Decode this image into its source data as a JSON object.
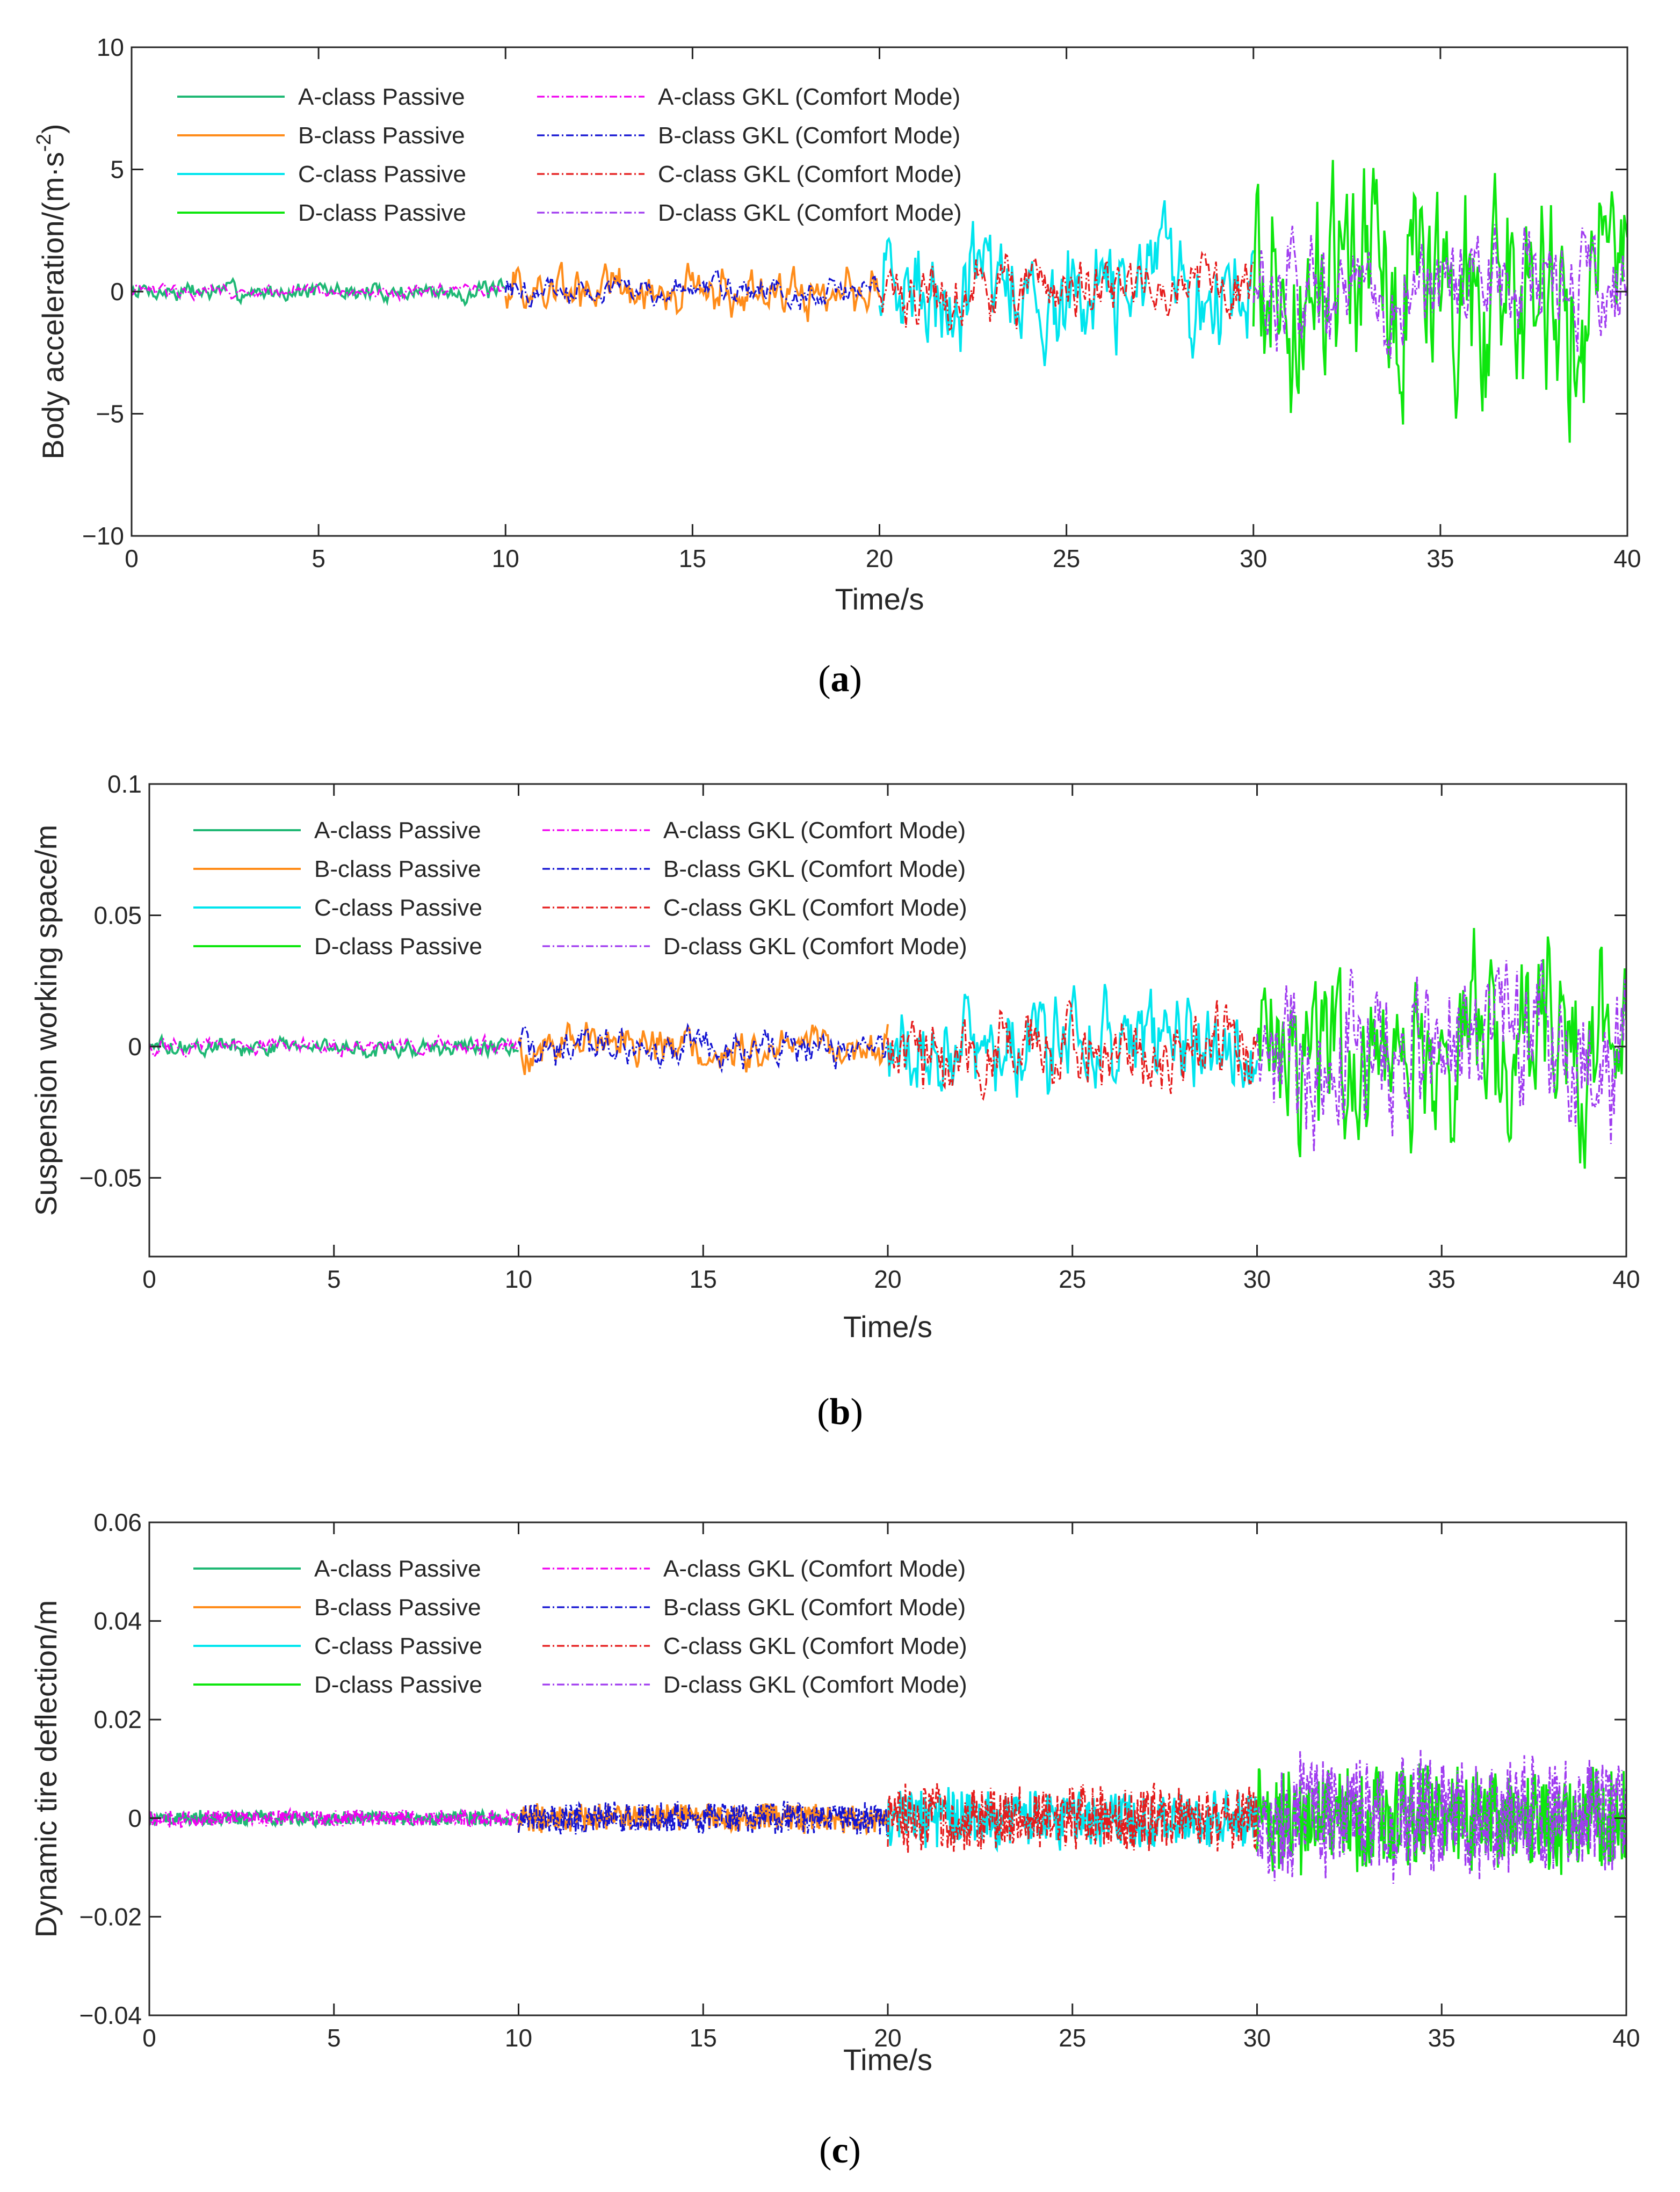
{
  "chart_data": [
    {
      "type": "line",
      "panel": "a",
      "caption_letter": "a",
      "xlabel": "Time/s",
      "ylabel": "Body acceleration/(m·s",
      "ylabel_sup": "-2",
      "ylabel_end": ")",
      "xlim": [
        0,
        40
      ],
      "ylim": [
        -10,
        10
      ],
      "xticks": [
        "0",
        "5",
        "10",
        "15",
        "20",
        "25",
        "30",
        "35",
        "40"
      ],
      "yticks": [
        "10",
        "5",
        "0",
        "−5",
        "−10"
      ],
      "ytick_values": [
        10,
        5,
        0,
        -5,
        -10
      ],
      "segments": [
        {
          "passive": "A-class Passive",
          "gkl": "A-class GKL (Comfort Mode)",
          "t": [
            0,
            10
          ],
          "passive_amp": 0.45,
          "gkl_amp": 0.3,
          "passive_color": "#1fb874",
          "gkl_color": "#f000f0"
        },
        {
          "passive": "B-class Passive",
          "gkl": "B-class GKL (Comfort Mode)",
          "t": [
            10,
            20
          ],
          "passive_amp": 1.1,
          "gkl_amp": 0.6,
          "passive_color": "#ff8c1a",
          "gkl_color": "#1414d2"
        },
        {
          "passive": "C-class Passive",
          "gkl": "C-class GKL (Comfort Mode)",
          "t": [
            20,
            30
          ],
          "passive_amp": 2.6,
          "gkl_amp": 1.4,
          "passive_color": "#00e5ee",
          "gkl_color": "#e51c1c"
        },
        {
          "passive": "D-class Passive",
          "gkl": "D-class GKL (Comfort Mode)",
          "t": [
            30,
            40
          ],
          "passive_amp": 5.2,
          "gkl_amp": 2.6,
          "passive_color": "#0ee60e",
          "gkl_color": "#a03cf0"
        }
      ]
    },
    {
      "type": "line",
      "panel": "b",
      "caption_letter": "b",
      "xlabel": "Time/s",
      "ylabel": "Suspension working space/m",
      "xlim": [
        0,
        40
      ],
      "ylim": [
        -0.08,
        0.1
      ],
      "xticks": [
        "0",
        "5",
        "10",
        "15",
        "20",
        "25",
        "30",
        "35",
        "40"
      ],
      "yticks": [
        "0.1",
        "0.05",
        "0",
        "−0.05"
      ],
      "ytick_values": [
        0.1,
        0.05,
        0,
        -0.05
      ],
      "segments": [
        {
          "passive": "A-class Passive",
          "gkl": "A-class GKL (Comfort Mode)",
          "t": [
            0,
            10
          ],
          "passive_amp": 0.004,
          "gkl_amp": 0.0035,
          "passive_color": "#1fb874",
          "gkl_color": "#f000f0"
        },
        {
          "passive": "B-class Passive",
          "gkl": "B-class GKL (Comfort Mode)",
          "t": [
            10,
            20
          ],
          "passive_amp": 0.009,
          "gkl_amp": 0.008,
          "passive_color": "#ff8c1a",
          "gkl_color": "#1414d2"
        },
        {
          "passive": "C-class Passive",
          "gkl": "C-class GKL (Comfort Mode)",
          "t": [
            20,
            30
          ],
          "passive_amp": 0.02,
          "gkl_amp": 0.017,
          "passive_color": "#00e5ee",
          "gkl_color": "#e51c1c"
        },
        {
          "passive": "D-class Passive",
          "gkl": "D-class GKL (Comfort Mode)",
          "t": [
            30,
            40
          ],
          "passive_amp": 0.04,
          "gkl_amp": 0.035,
          "passive_color": "#0ee60e",
          "gkl_color": "#a03cf0"
        }
      ]
    },
    {
      "type": "line",
      "panel": "c",
      "caption_letter": "c",
      "xlabel": "Time/s",
      "ylabel": "Dynamic tire deflection/m",
      "xlim": [
        0,
        40
      ],
      "ylim": [
        -0.04,
        0.06
      ],
      "xticks": [
        "0",
        "5",
        "10",
        "15",
        "20",
        "25",
        "30",
        "35",
        "40"
      ],
      "yticks": [
        "0.06",
        "0.04",
        "0.02",
        "0",
        "−0.02",
        "−0.04"
      ],
      "ytick_values": [
        0.06,
        0.04,
        0.02,
        0,
        -0.02,
        -0.04
      ],
      "segments": [
        {
          "passive": "A-class Passive",
          "gkl": "A-class GKL (Comfort Mode)",
          "t": [
            0,
            10
          ],
          "passive_amp": 0.0015,
          "gkl_amp": 0.0018,
          "passive_color": "#1fb874",
          "gkl_color": "#f000f0"
        },
        {
          "passive": "B-class Passive",
          "gkl": "B-class GKL (Comfort Mode)",
          "t": [
            10,
            20
          ],
          "passive_amp": 0.003,
          "gkl_amp": 0.0035,
          "passive_color": "#ff8c1a",
          "gkl_color": "#1414d2"
        },
        {
          "passive": "C-class Passive",
          "gkl": "C-class GKL (Comfort Mode)",
          "t": [
            20,
            30
          ],
          "passive_amp": 0.006,
          "gkl_amp": 0.007,
          "passive_color": "#00e5ee",
          "gkl_color": "#e51c1c"
        },
        {
          "passive": "D-class Passive",
          "gkl": "D-class GKL (Comfort Mode)",
          "t": [
            30,
            40
          ],
          "passive_amp": 0.011,
          "gkl_amp": 0.013,
          "passive_color": "#0ee60e",
          "gkl_color": "#a03cf0"
        }
      ]
    }
  ]
}
